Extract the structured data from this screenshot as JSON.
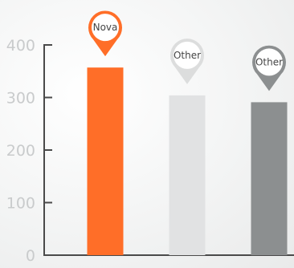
{
  "chart_data": {
    "type": "bar",
    "categories": [
      "Nova",
      "Other",
      "Other"
    ],
    "values": [
      357,
      304,
      291
    ],
    "yticks": [
      0,
      100,
      200,
      300,
      400
    ],
    "ylim": [
      0,
      400
    ],
    "title": "",
    "xlabel": "",
    "ylabel": "",
    "grid": false,
    "colors": {
      "bars": [
        "#ff6e28",
        "#e1e2e3",
        "#8c8f90"
      ],
      "pins": [
        "#ff6e28",
        "#dcdddd",
        "#8c8f90"
      ],
      "axis": "#4a4a4a",
      "tick_label": "#c9cbcc",
      "pin_label": "#444444"
    },
    "marker": "map-pin-icon"
  }
}
